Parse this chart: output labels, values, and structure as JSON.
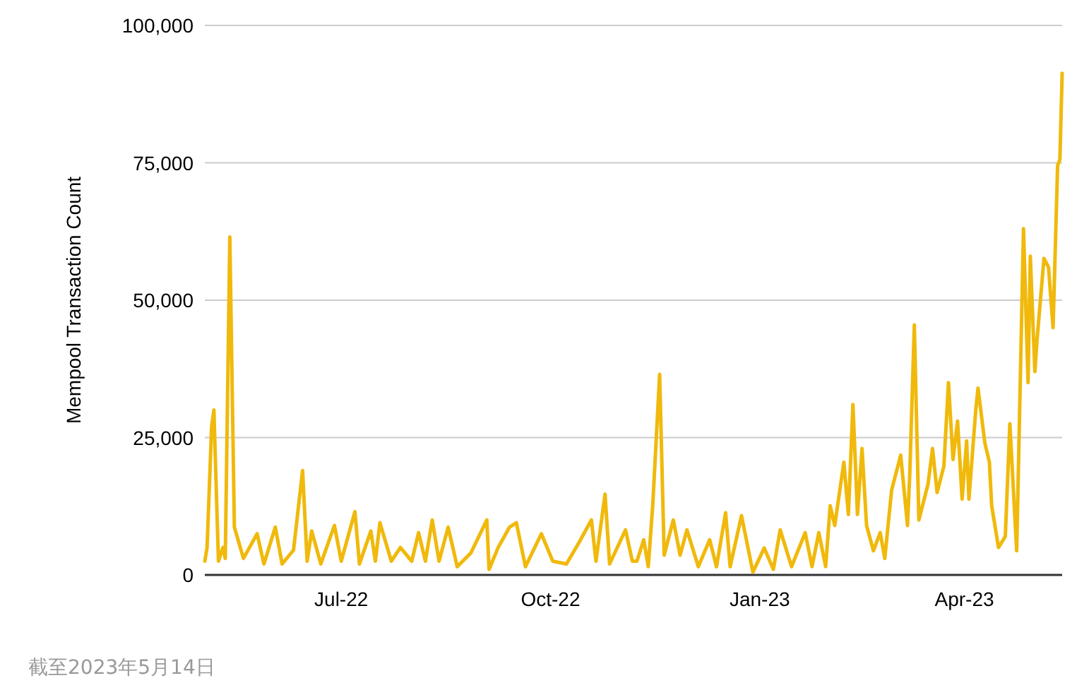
{
  "chart_data": {
    "type": "line",
    "ylabel": "Mempool Transaction Count",
    "color": "#f0b90b",
    "grid": "y",
    "xlim": [
      "2022-05-02",
      "2023-05-14"
    ],
    "xticks": [
      {
        "value": "2022-07-01",
        "label": "Jul-22"
      },
      {
        "value": "2022-10-01",
        "label": "Oct-22"
      },
      {
        "value": "2023-01-01",
        "label": "Jan-23"
      },
      {
        "value": "2023-04-01",
        "label": "Apr-23"
      }
    ],
    "ylim": [
      0,
      100000
    ],
    "yticks": [
      0,
      {
        "value": 25000,
        "label": "25,000"
      },
      {
        "value": 50000,
        "label": "50,000"
      },
      {
        "value": 75000,
        "label": "75,000"
      },
      {
        "value": 100000,
        "label": "100,000"
      }
    ],
    "x": [
      "2022-05-02",
      "2022-05-03",
      "2022-05-05",
      "2022-05-06",
      "2022-05-08",
      "2022-05-10",
      "2022-05-11",
      "2022-05-13",
      "2022-05-15",
      "2022-05-19",
      "2022-05-25",
      "2022-05-28",
      "2022-06-02",
      "2022-06-05",
      "2022-06-10",
      "2022-06-14",
      "2022-06-16",
      "2022-06-18",
      "2022-06-22",
      "2022-06-28",
      "2022-07-01",
      "2022-07-07",
      "2022-07-09",
      "2022-07-14",
      "2022-07-16",
      "2022-07-18",
      "2022-07-23",
      "2022-07-27",
      "2022-08-01",
      "2022-08-04",
      "2022-08-07",
      "2022-08-10",
      "2022-08-13",
      "2022-08-17",
      "2022-08-21",
      "2022-08-27",
      "2022-09-03",
      "2022-09-04",
      "2022-09-08",
      "2022-09-13",
      "2022-09-16",
      "2022-09-20",
      "2022-09-27",
      "2022-10-02",
      "2022-10-08",
      "2022-10-13",
      "2022-10-19",
      "2022-10-21",
      "2022-10-25",
      "2022-10-27",
      "2022-11-03",
      "2022-11-06",
      "2022-11-08",
      "2022-11-11",
      "2022-11-13",
      "2022-11-15",
      "2022-11-18",
      "2022-11-20",
      "2022-11-24",
      "2022-11-27",
      "2022-11-30",
      "2022-12-05",
      "2022-12-10",
      "2022-12-13",
      "2022-12-17",
      "2022-12-19",
      "2022-12-24",
      "2022-12-29",
      "2023-01-03",
      "2023-01-07",
      "2023-01-10",
      "2023-01-15",
      "2023-01-21",
      "2023-01-24",
      "2023-01-27",
      "2023-01-30",
      "2023-02-01",
      "2023-02-03",
      "2023-02-07",
      "2023-02-09",
      "2023-02-11",
      "2023-02-13",
      "2023-02-15",
      "2023-02-17",
      "2023-02-20",
      "2023-02-23",
      "2023-02-25",
      "2023-02-28",
      "2023-03-04",
      "2023-03-07",
      "2023-03-08",
      "2023-03-10",
      "2023-03-12",
      "2023-03-16",
      "2023-03-18",
      "2023-03-20",
      "2023-03-23",
      "2023-03-25",
      "2023-03-27",
      "2023-03-29",
      "2023-03-31",
      "2023-04-02",
      "2023-04-03",
      "2023-04-06",
      "2023-04-07",
      "2023-04-10",
      "2023-04-12",
      "2023-04-13",
      "2023-04-16",
      "2023-04-19",
      "2023-04-21",
      "2023-04-24",
      "2023-04-27",
      "2023-04-29",
      "2023-04-30",
      "2023-05-02",
      "2023-05-03",
      "2023-05-06",
      "2023-05-08",
      "2023-05-10",
      "2023-05-12",
      "2023-05-13",
      "2023-05-14"
    ],
    "values": [
      2500,
      5000,
      27000,
      30000,
      2500,
      5000,
      3000,
      61500,
      8700,
      3000,
      7500,
      2000,
      8700,
      2000,
      4500,
      19000,
      2500,
      8000,
      2000,
      9000,
      2500,
      11500,
      2000,
      8000,
      2500,
      9500,
      2500,
      5000,
      2500,
      7700,
      2500,
      10000,
      2500,
      8700,
      1500,
      4000,
      10000,
      1000,
      5000,
      8700,
      9500,
      1500,
      7500,
      2500,
      2000,
      5500,
      10000,
      2500,
      14700,
      2000,
      8200,
      2500,
      2500,
      6400,
      1500,
      12900,
      36500,
      3600,
      10000,
      3600,
      8200,
      1500,
      6400,
      1500,
      11300,
      1500,
      10800,
      500,
      4900,
      1000,
      8200,
      1500,
      7700,
      1500,
      7700,
      1500,
      12600,
      9000,
      20500,
      11000,
      31000,
      11000,
      23000,
      9000,
      4400,
      7700,
      3000,
      15400,
      21800,
      9000,
      18500,
      45500,
      10000,
      16500,
      23000,
      15000,
      19800,
      35000,
      21000,
      28000,
      13800,
      24400,
      13800,
      30000,
      34000,
      24000,
      20500,
      12600,
      5000,
      7000,
      27500,
      4400,
      63000,
      35000,
      58000,
      37000,
      43000,
      57600,
      56000,
      45000,
      74500,
      75600,
      91300
    ],
    "annotations": [
      "截至2023年5月14日"
    ]
  }
}
